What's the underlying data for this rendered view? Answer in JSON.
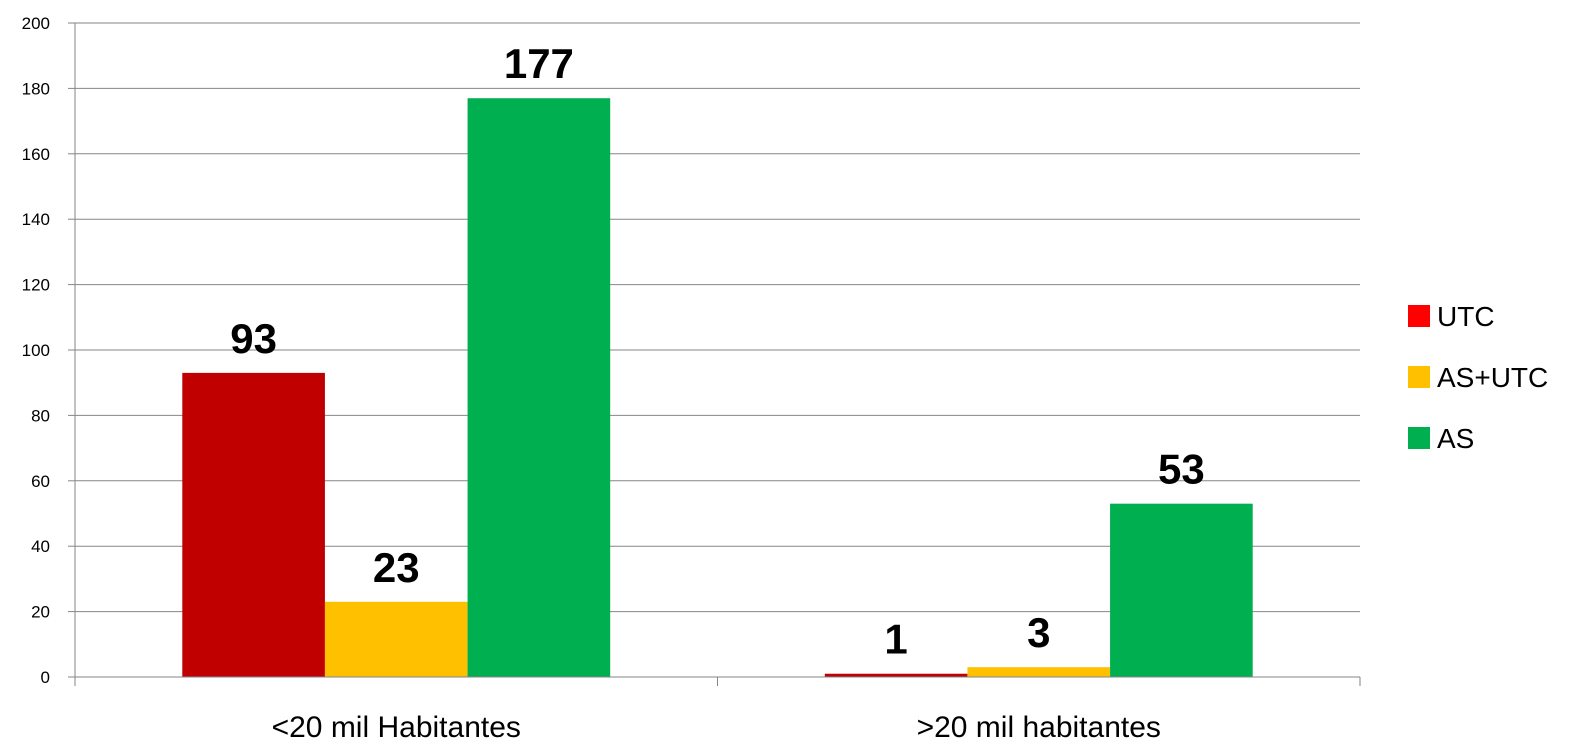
{
  "chart_data": {
    "type": "bar",
    "categories": [
      "<20 mil Habitantes",
      ">20 mil habitantes"
    ],
    "series": [
      {
        "name": "UTC",
        "values": [
          93,
          1
        ],
        "color": "#C00000"
      },
      {
        "name": "AS+UTC",
        "values": [
          23,
          3
        ],
        "color": "#FFC000"
      },
      {
        "name": "AS",
        "values": [
          177,
          53
        ],
        "color": "#00B050"
      }
    ],
    "legend_colors": [
      "#FF0000",
      "#FFC000",
      "#00B050"
    ],
    "ylim": [
      0,
      200
    ],
    "yticks": [
      0,
      20,
      40,
      60,
      80,
      100,
      120,
      140,
      160,
      180,
      200
    ],
    "ytick_labels": [
      "0",
      "20",
      "40",
      "60",
      "80",
      "100",
      "120",
      "140",
      "160",
      "180",
      "200"
    ],
    "data_labels": [
      [
        "93",
        "23",
        "177"
      ],
      [
        "1",
        "3",
        "53"
      ]
    ],
    "grid": true,
    "legend_position": "right",
    "title": "",
    "xlabel": "",
    "ylabel": ""
  }
}
